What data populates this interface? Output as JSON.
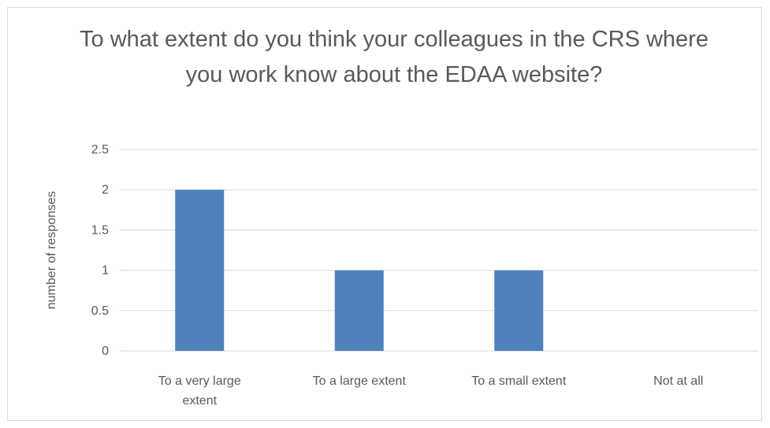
{
  "chart_data": {
    "type": "bar",
    "title": "To what extent do you think your colleagues in the CRS where you work know about the EDAA website?",
    "categories": [
      "To a very large extent",
      "To a large extent",
      "To a small extent",
      "Not at all"
    ],
    "category_lines": [
      [
        "To a very large",
        "extent"
      ],
      [
        "To a large extent"
      ],
      [
        "To a small extent"
      ],
      [
        "Not at all"
      ]
    ],
    "values": [
      2,
      1,
      1,
      0
    ],
    "xlabel": "",
    "ylabel": "number of responses",
    "ylim": [
      0,
      2.5
    ],
    "yticks": [
      "0",
      "0.5",
      "1",
      "1.5",
      "2",
      "2.5"
    ],
    "grid": true,
    "legend": "none",
    "bar_color": "#4f81bd",
    "grid_color": "#d9d9d9"
  }
}
